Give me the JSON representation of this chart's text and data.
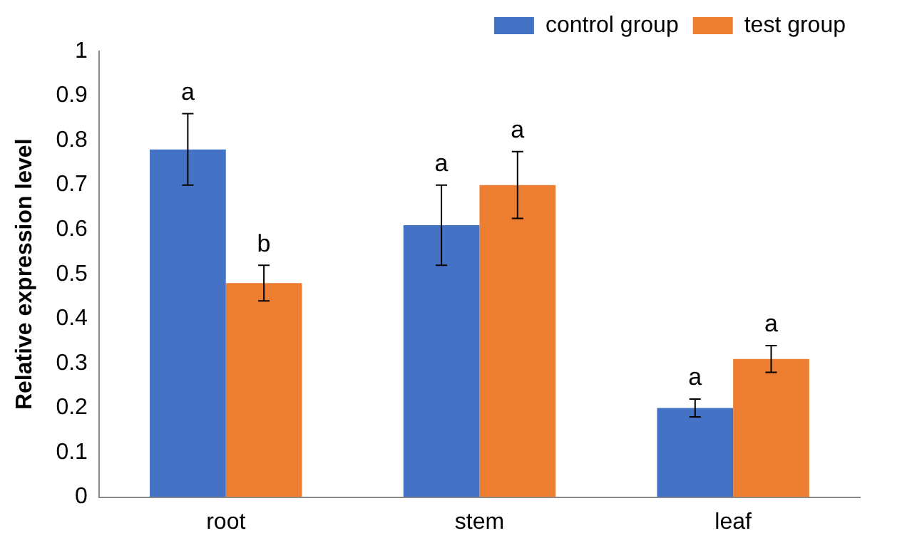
{
  "chart_data": {
    "type": "bar",
    "ylabel": "Relative expression level",
    "categories": [
      "root",
      "stem",
      "leaf"
    ],
    "series": [
      {
        "name": "control group",
        "color": "#4472c4",
        "values": [
          0.78,
          0.61,
          0.2
        ],
        "errors": [
          0.08,
          0.09,
          0.02
        ]
      },
      {
        "name": "test group",
        "color": "#ed7d31",
        "values": [
          0.48,
          0.7,
          0.31
        ],
        "errors": [
          0.04,
          0.075,
          0.03
        ]
      }
    ],
    "ylim": [
      0,
      1
    ],
    "yticks": [
      0,
      0.1,
      0.2,
      0.3,
      0.4,
      0.5,
      0.6,
      0.7,
      0.8,
      0.9,
      1
    ],
    "grid": false,
    "legend": "top right",
    "annotations": [
      "a",
      "b",
      "a",
      "a",
      "a",
      "a"
    ]
  }
}
